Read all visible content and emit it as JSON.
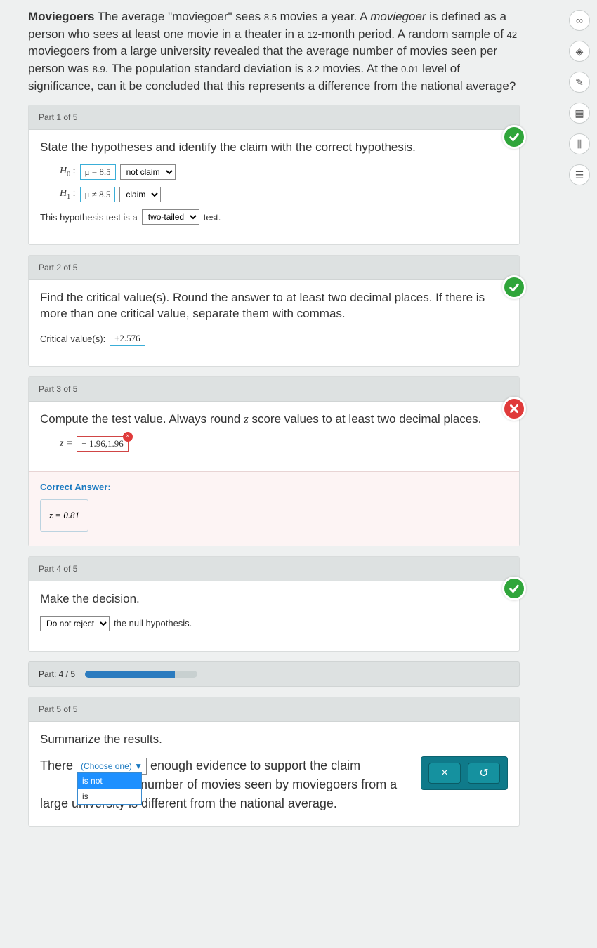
{
  "problem": {
    "title": "Moviegoers",
    "text_parts": {
      "p1": " The average \"moviegoer\" sees ",
      "n1": "8.5",
      "p2": " movies a year. A ",
      "ital": "moviegoer",
      "p3": " is defined as a person who sees at least one movie in a theater in a ",
      "n2": "12",
      "p4": "-month period. A random sample of ",
      "n3": "42",
      "p5": " moviegoers from a large university revealed that the average number of movies seen per person was ",
      "n4": "8.9",
      "p6": ". The population standard deviation is ",
      "n5": "3.2",
      "p7": " movies. At the ",
      "n6": "0.01",
      "p8": " level of significance, can it be concluded that this represents a difference from the national average?"
    }
  },
  "part1": {
    "header": "Part 1 of 5",
    "status": "correct",
    "instruction": "State the hypotheses and identify the claim with the correct hypothesis.",
    "h0_label": "H",
    "h0_sub": "0",
    "h0_val": "μ = 8.5",
    "h0_claim": "not claim",
    "h1_label": "H",
    "h1_sub": "1",
    "h1_val": "μ ≠ 8.5",
    "h1_claim": "claim",
    "tail_pre": "This hypothesis test is a ",
    "tail_val": "two-tailed",
    "tail_post": " test."
  },
  "part2": {
    "header": "Part 2 of 5",
    "status": "correct",
    "instruction": "Find the critical value(s). Round the answer to at least two decimal places. If there is more than one critical value, separate them with commas.",
    "label": "Critical value(s): ",
    "value": "±2.576"
  },
  "part3": {
    "header": "Part 3 of 5",
    "status": "wrong",
    "instruction_pre": "Compute the test value. Always round ",
    "instruction_ital": "z",
    "instruction_post": " score values to at least two decimal places.",
    "z_label": "z =",
    "entered": "− 1.96,1.96",
    "correct_label": "Correct Answer:",
    "correct_val": "z = 0.81"
  },
  "part4": {
    "header": "Part 4 of 5",
    "status": "correct",
    "instruction": "Make the decision.",
    "decision": "Do not reject",
    "post": " the null hypothesis."
  },
  "progress": {
    "label": "Part: 4 / 5",
    "percent": 80
  },
  "part5": {
    "header": "Part 5 of 5",
    "instruction": "Summarize the results.",
    "text_pre": "There ",
    "dropdown_placeholder": "(Choose one)",
    "options": {
      "opt1": "is not",
      "opt2": "is"
    },
    "text_mid": " enough evidence to support the claim ",
    "text_post": "erage number of movies seen by moviegoers from a large university is different from the national average."
  },
  "actions": {
    "close": "×",
    "reset": "↺"
  },
  "toolbar": {
    "icons": [
      "∞",
      "◈",
      "✎",
      "▦",
      "⫼",
      "☰"
    ]
  }
}
